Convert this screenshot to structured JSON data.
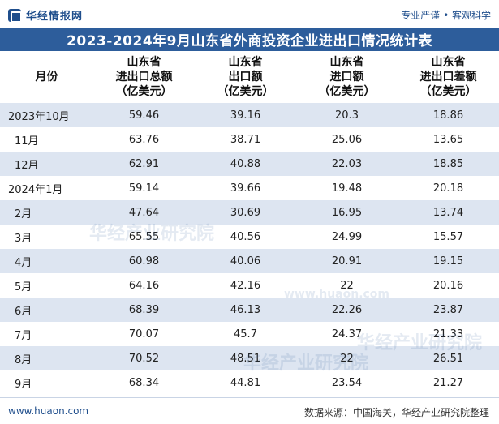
{
  "brand": {
    "name": "华经情报网",
    "slogan": "专业严谨 • 客观科学"
  },
  "title": "2023-2024年9月山东省外商投资企业进出口情况统计表",
  "columns": [
    "月份",
    "山东省\n进出口总额\n（亿美元）",
    "山东省\n出口额\n（亿美元）",
    "山东省\n进口额\n（亿美元）",
    "山东省\n进出口差额\n（亿美元）"
  ],
  "rows": [
    [
      "2023年10月",
      "59.46",
      "39.16",
      "20.3",
      "18.86"
    ],
    [
      "11月",
      "63.76",
      "38.71",
      "25.06",
      "13.65"
    ],
    [
      "12月",
      "62.91",
      "40.88",
      "22.03",
      "18.85"
    ],
    [
      "2024年1月",
      "59.14",
      "39.66",
      "19.48",
      "20.18"
    ],
    [
      "2月",
      "47.64",
      "30.69",
      "16.95",
      "13.74"
    ],
    [
      "3月",
      "65.55",
      "40.56",
      "24.99",
      "15.57"
    ],
    [
      "4月",
      "60.98",
      "40.06",
      "20.91",
      "19.15"
    ],
    [
      "5月",
      "64.16",
      "42.16",
      "22",
      "20.16"
    ],
    [
      "6月",
      "68.39",
      "46.13",
      "22.26",
      "23.87"
    ],
    [
      "7月",
      "70.07",
      "45.7",
      "24.37",
      "21.33"
    ],
    [
      "8月",
      "70.52",
      "48.51",
      "22",
      "26.51"
    ],
    [
      "9月",
      "68.34",
      "44.81",
      "23.54",
      "21.27"
    ]
  ],
  "watermark": {
    "text": "华经产业研究院",
    "url": "www.huaon.com"
  },
  "footer": {
    "site": "www.huaon.com",
    "source": "数据来源：中国海关，华经产业研究院整理"
  }
}
